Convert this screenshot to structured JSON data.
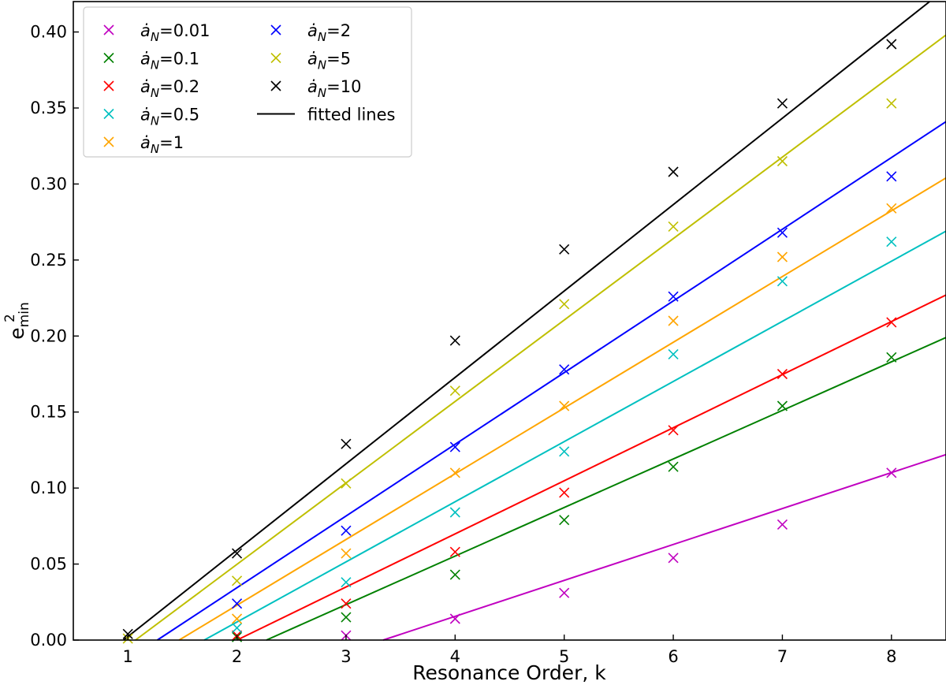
{
  "chart_data": {
    "type": "scatter",
    "title": "",
    "xlabel": "Resonance Order, k",
    "ylabel_base": "e",
    "ylabel_sup": "2",
    "ylabel_sub": "min",
    "xlim": [
      0.5,
      8.5
    ],
    "ylim": [
      0.0,
      0.42
    ],
    "xticks": [
      1,
      2,
      3,
      4,
      5,
      6,
      7,
      8
    ],
    "yticks": [
      0.0,
      0.05,
      0.1,
      0.15,
      0.2,
      0.25,
      0.3,
      0.35,
      0.4
    ],
    "ytick_labels": [
      "0.00",
      "0.05",
      "0.10",
      "0.15",
      "0.20",
      "0.25",
      "0.30",
      "0.35",
      "0.40"
    ],
    "grid": false,
    "legend_position": "top-left",
    "legend_columns": 2,
    "marker": "x",
    "x": [
      1,
      2,
      3,
      4,
      5,
      6,
      7,
      8
    ],
    "series": [
      {
        "name": "ȧN=0.01",
        "label_prefix": "ȧ",
        "label_sub": "N",
        "label_value": "=0.01",
        "color": "#c000c0",
        "values": [
          null,
          null,
          0.003,
          0.014,
          0.031,
          0.054,
          0.076,
          0.11
        ],
        "fit": {
          "from": [
            3.34,
            0.0
          ],
          "to": [
            8.5,
            0.122
          ]
        }
      },
      {
        "name": "ȧN=0.1",
        "label_prefix": "ȧ",
        "label_sub": "N",
        "label_value": "=0.1",
        "color": "#008000",
        "values": [
          null,
          0.002,
          0.015,
          0.043,
          0.079,
          0.114,
          0.154,
          0.186
        ],
        "fit": {
          "from": [
            2.27,
            0.0
          ],
          "to": [
            8.5,
            0.199
          ]
        }
      },
      {
        "name": "ȧN=0.2",
        "label_prefix": "ȧ",
        "label_sub": "N",
        "label_value": "=0.2",
        "color": "#ff0000",
        "values": [
          null,
          0.003,
          0.024,
          0.058,
          0.097,
          0.138,
          0.175,
          0.209
        ],
        "fit": {
          "from": [
            2.0,
            0.0
          ],
          "to": [
            8.5,
            0.227
          ]
        }
      },
      {
        "name": "ȧN=0.5",
        "label_prefix": "ȧ",
        "label_sub": "N",
        "label_value": "=0.5",
        "color": "#00c0c0",
        "values": [
          null,
          0.008,
          0.038,
          0.084,
          0.124,
          0.188,
          0.236,
          0.262
        ],
        "fit": {
          "from": [
            1.7,
            0.0
          ],
          "to": [
            8.5,
            0.269
          ]
        }
      },
      {
        "name": "ȧN=1",
        "label_prefix": "ȧ",
        "label_sub": "N",
        "label_value": "=1",
        "color": "#ffa500",
        "values": [
          null,
          0.014,
          0.057,
          0.11,
          0.154,
          0.21,
          0.252,
          0.284
        ],
        "fit": {
          "from": [
            1.47,
            0.0
          ],
          "to": [
            8.5,
            0.304
          ]
        }
      },
      {
        "name": "ȧN=2",
        "label_prefix": "ȧ",
        "label_sub": "N",
        "label_value": "=2",
        "color": "#0000ff",
        "values": [
          null,
          0.024,
          0.072,
          0.127,
          0.178,
          0.226,
          0.268,
          0.305
        ],
        "fit": {
          "from": [
            1.27,
            0.0
          ],
          "to": [
            8.5,
            0.341
          ]
        }
      },
      {
        "name": "ȧN=5",
        "label_prefix": "ȧ",
        "label_sub": "N",
        "label_value": "=5",
        "color": "#bfbf00",
        "values": [
          0.001,
          0.039,
          0.103,
          0.164,
          0.221,
          0.272,
          0.315,
          0.353
        ],
        "fit": {
          "from": [
            1.07,
            0.0
          ],
          "to": [
            8.5,
            0.398
          ]
        }
      },
      {
        "name": "ȧN=10",
        "label_prefix": "ȧ",
        "label_sub": "N",
        "label_value": "=10",
        "color": "#000000",
        "values": [
          0.004,
          0.057,
          0.129,
          0.197,
          0.257,
          0.308,
          0.353,
          0.392
        ],
        "fit": {
          "from": [
            0.96,
            0.0
          ],
          "to": [
            8.35,
            0.42
          ]
        }
      }
    ],
    "fit_legend_label": "fitted lines",
    "fit_legend_color": "#000000"
  }
}
